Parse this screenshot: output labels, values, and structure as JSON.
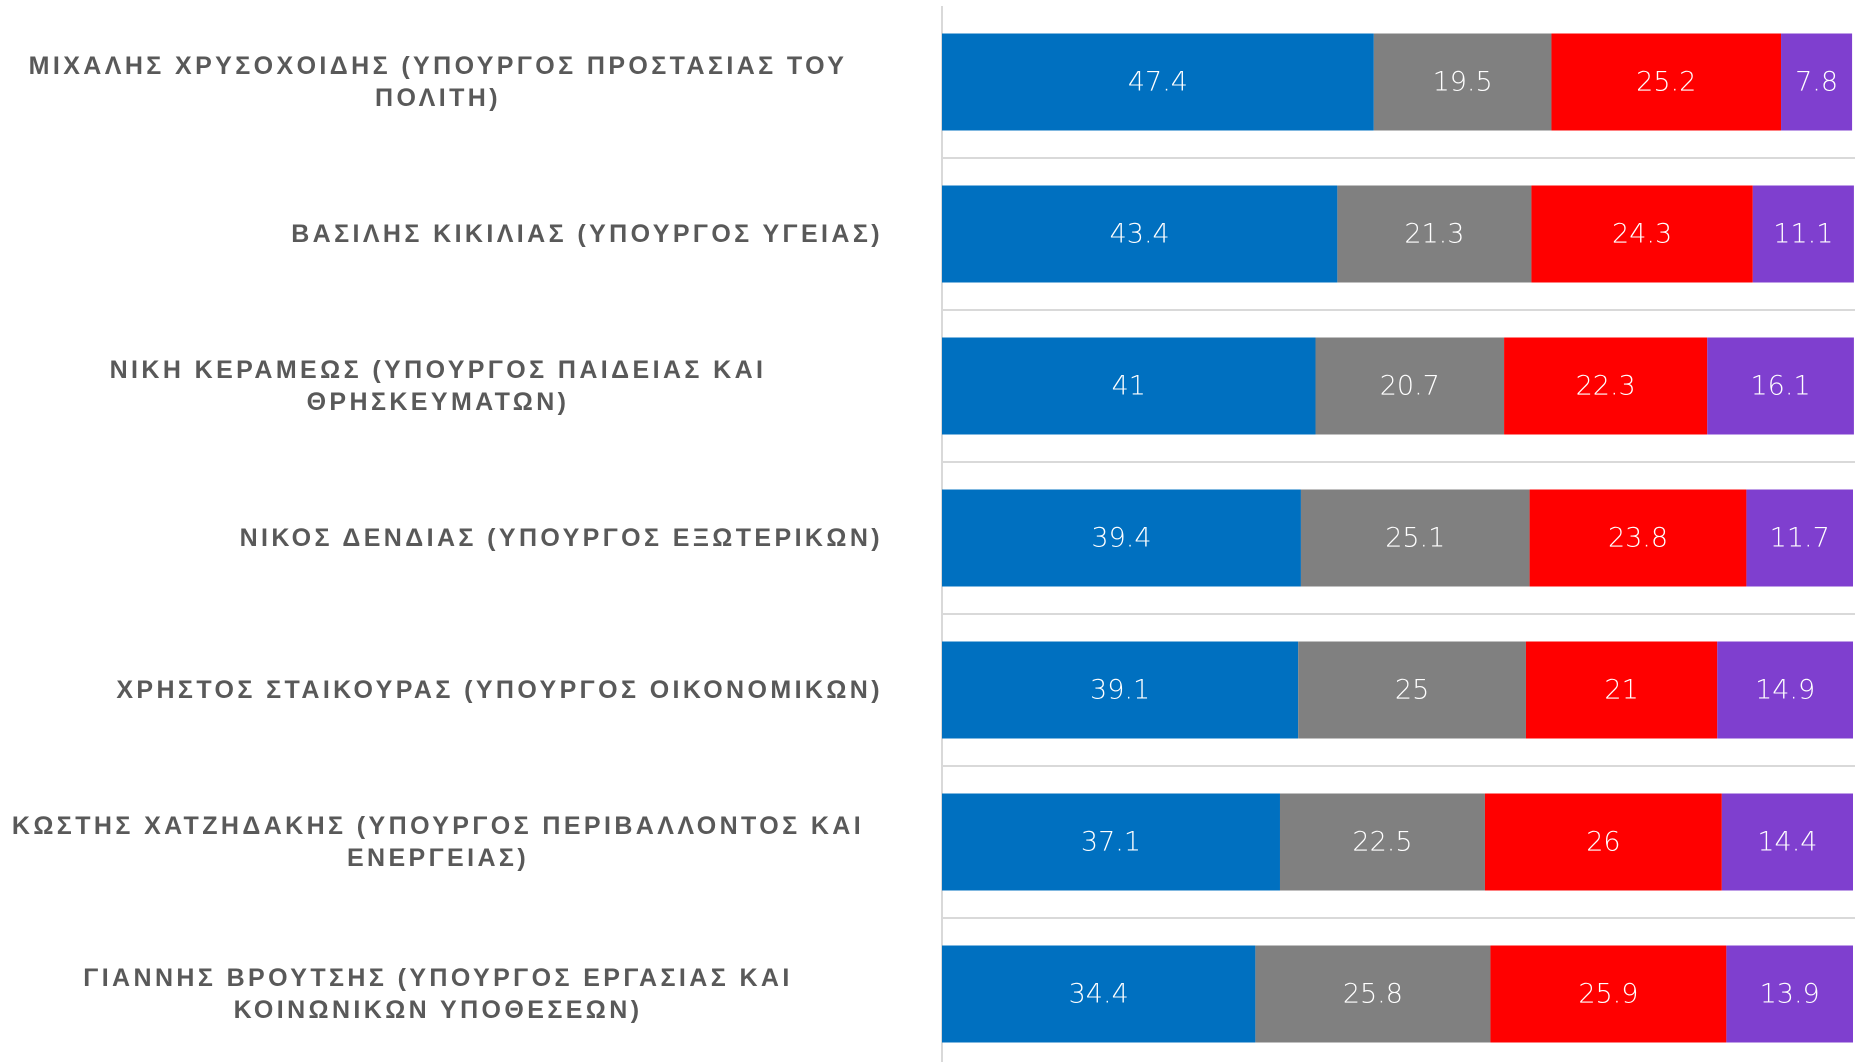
{
  "chart_data": {
    "type": "stacked_barh",
    "categories": [
      "ΜΙΧΑΛΗΣ ΧΡΥΣΟΧΟΙΔΗΣ (ΥΠΟΥΡΓΟΣ ΠΡΟΣΤΑΣΙΑΣ ΤΟΥ ΠΟΛΙΤΗ)",
      "ΒΑΣΙΛΗΣ ΚΙΚΙΛΙΑΣ (ΥΠΟΥΡΓΟΣ ΥΓΕΙΑΣ)",
      "ΝΙΚΗ ΚΕΡΑΜΕΩΣ (ΥΠΟΥΡΓΟΣ ΠΑΙΔΕΙΑΣ ΚΑΙ ΘΡΗΣΚΕΥΜΑΤΩΝ)",
      "ΝΙΚΟΣ ΔΕΝΔΙΑΣ (ΥΠΟΥΡΓΟΣ ΕΞΩΤΕΡΙΚΩΝ)",
      "ΧΡΗΣΤΟΣ ΣΤΑΙΚΟΥΡΑΣ (ΥΠΟΥΡΓΟΣ ΟΙΚΟΝΟΜΙΚΩΝ)",
      "ΚΩΣΤΗΣ ΧΑΤΖΗΔΑΚΗΣ (ΥΠΟΥΡΓΟΣ ΠΕΡΙΒΑΛΛΟΝΤΟΣ ΚΑΙ ΕΝΕΡΓΕΙΑΣ)",
      "ΓΙΑΝΝΗΣ ΒΡΟΥΤΣΗΣ (ΥΠΟΥΡΓΟΣ ΕΡΓΑΣΙΑΣ ΚΑΙ ΚΟΙΝΩΝΙΚΩΝ ΥΠΟΘΕΣΕΩΝ)"
    ],
    "series": [
      {
        "color": "#0070c0",
        "values": [
          47.4,
          43.4,
          41,
          39.4,
          39.1,
          37.1,
          34.4
        ]
      },
      {
        "color": "#808080",
        "values": [
          19.5,
          21.3,
          20.7,
          25.1,
          25,
          22.5,
          25.8
        ]
      },
      {
        "color": "#ff0000",
        "values": [
          25.2,
          24.3,
          22.3,
          23.8,
          21,
          26,
          25.9
        ]
      },
      {
        "color": "#7f3fcf",
        "values": [
          7.8,
          11.1,
          16.1,
          11.7,
          14.9,
          14.4,
          13.9
        ]
      }
    ],
    "xlim": [
      0,
      100
    ]
  }
}
